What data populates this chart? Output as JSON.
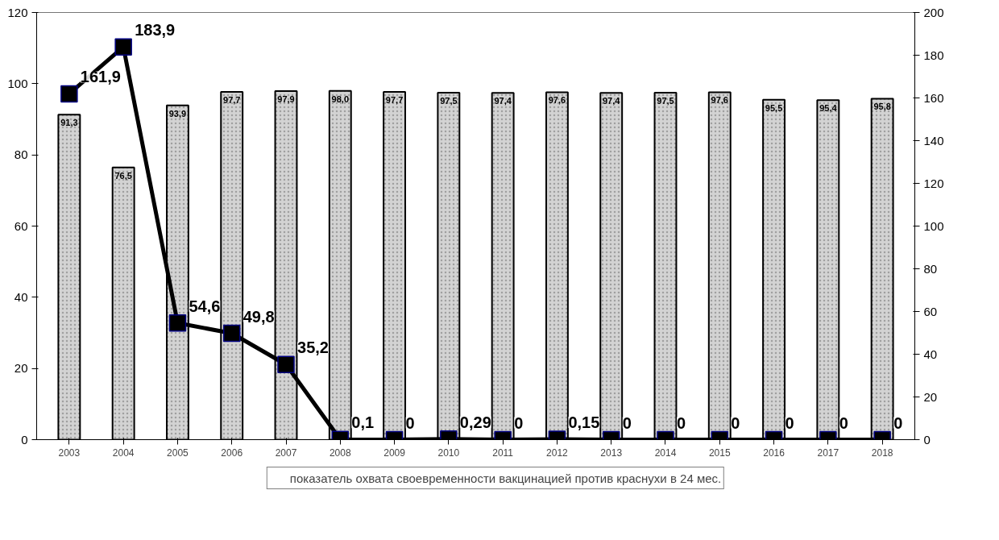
{
  "chart_data": {
    "type": "bar",
    "categories": [
      "2003",
      "2004",
      "2005",
      "2006",
      "2007",
      "2008",
      "2009",
      "2010",
      "2011",
      "2012",
      "2013",
      "2014",
      "2015",
      "2016",
      "2017",
      "2018"
    ],
    "series": [
      {
        "name": "показатель охвата своевременности вакцинацией против краснухи в 24 мес.",
        "color": "#d3d3d3",
        "values": [
          91.3,
          76.5,
          93.9,
          97.7,
          97.9,
          98.0,
          97.7,
          97.5,
          97.4,
          97.6,
          97.4,
          97.5,
          97.6,
          95.5,
          95.4,
          95.8
        ],
        "value_labels": [
          "91,3",
          "76,5",
          "93,9",
          "97,7",
          "97,9",
          "98,0",
          "97,7",
          "97,5",
          "97,4",
          "97,6",
          "97,4",
          "97,5",
          "97,6",
          "95,5",
          "95,4",
          "95,8"
        ]
      },
      {
        "type": "line",
        "axis": "y2",
        "color": "#000000",
        "values": [
          161.9,
          183.9,
          54.6,
          49.8,
          35.2,
          0.1,
          0,
          0.29,
          0,
          0.15,
          0,
          0,
          0,
          0,
          0,
          0
        ],
        "value_labels": [
          "161,9",
          "183,9",
          "54,6",
          "49,8",
          "35,2",
          "0,1",
          "0",
          "0,29",
          "0",
          "0,15",
          "0",
          "0",
          "0",
          "0",
          "0",
          "0"
        ]
      }
    ],
    "ylim": [
      0,
      120
    ],
    "yticks": [
      0,
      20,
      40,
      60,
      80,
      100,
      120
    ],
    "y2lim": [
      0,
      200
    ],
    "y2ticks": [
      0,
      20,
      40,
      60,
      80,
      100,
      120,
      140,
      160,
      180,
      200
    ],
    "marker": "square",
    "line_style": "solid",
    "grid": false,
    "legend": "bottom"
  }
}
